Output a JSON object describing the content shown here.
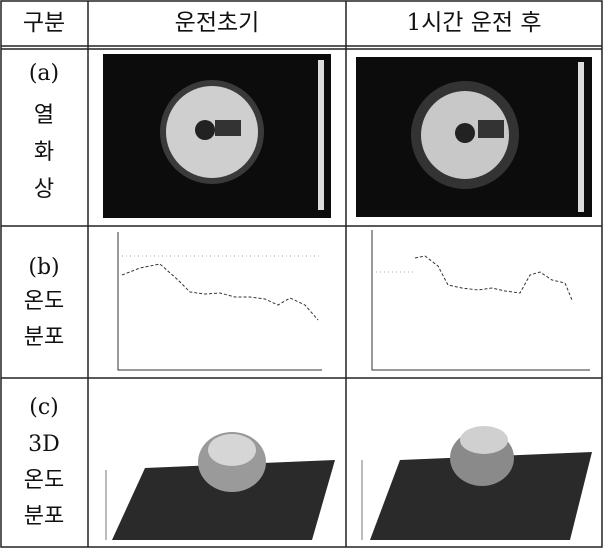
{
  "table": {
    "header": [
      "구분",
      "운전초기",
      "1시간 운전 후"
    ],
    "rows": [
      {
        "label": [
          "(a)",
          "열",
          "화",
          "상"
        ]
      },
      {
        "label": [
          "(b)",
          "온도",
          "분포"
        ]
      },
      {
        "label": [
          "(c)",
          "3D",
          "온도",
          "분포"
        ]
      }
    ]
  }
}
